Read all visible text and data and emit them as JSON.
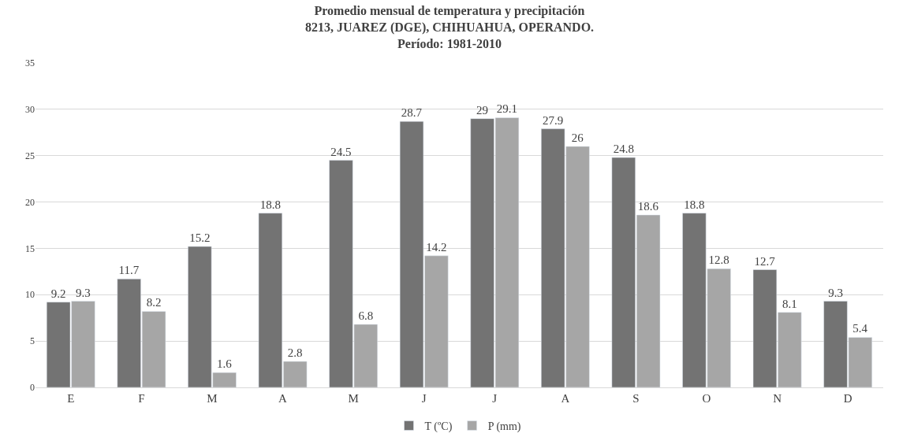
{
  "chart_data": {
    "type": "bar",
    "title": "Promedio mensual de temperatura y precipitación\n8213, JUAREZ (DGE), CHIHUAHUA, OPERANDO.\nPeríodo: 1981-2010",
    "categories": [
      "E",
      "F",
      "M",
      "A",
      "M",
      "J",
      "J",
      "A",
      "S",
      "O",
      "N",
      "D"
    ],
    "series": [
      {
        "name": "T (ºC)",
        "color": "#737373",
        "values": [
          9.2,
          11.7,
          15.2,
          18.8,
          24.5,
          28.7,
          29,
          27.9,
          24.8,
          18.8,
          12.7,
          9.3
        ]
      },
      {
        "name": "P (mm)",
        "color": "#a6a6a6",
        "values": [
          9.3,
          8.2,
          1.6,
          2.8,
          6.8,
          14.2,
          29.1,
          26,
          18.6,
          12.8,
          8.1,
          5.4
        ]
      }
    ],
    "ylim": [
      0,
      35
    ],
    "yticks": [
      0,
      5,
      10,
      15,
      20,
      25,
      30,
      35
    ],
    "grid": "y",
    "legend": "bottom",
    "data_labels": true
  }
}
